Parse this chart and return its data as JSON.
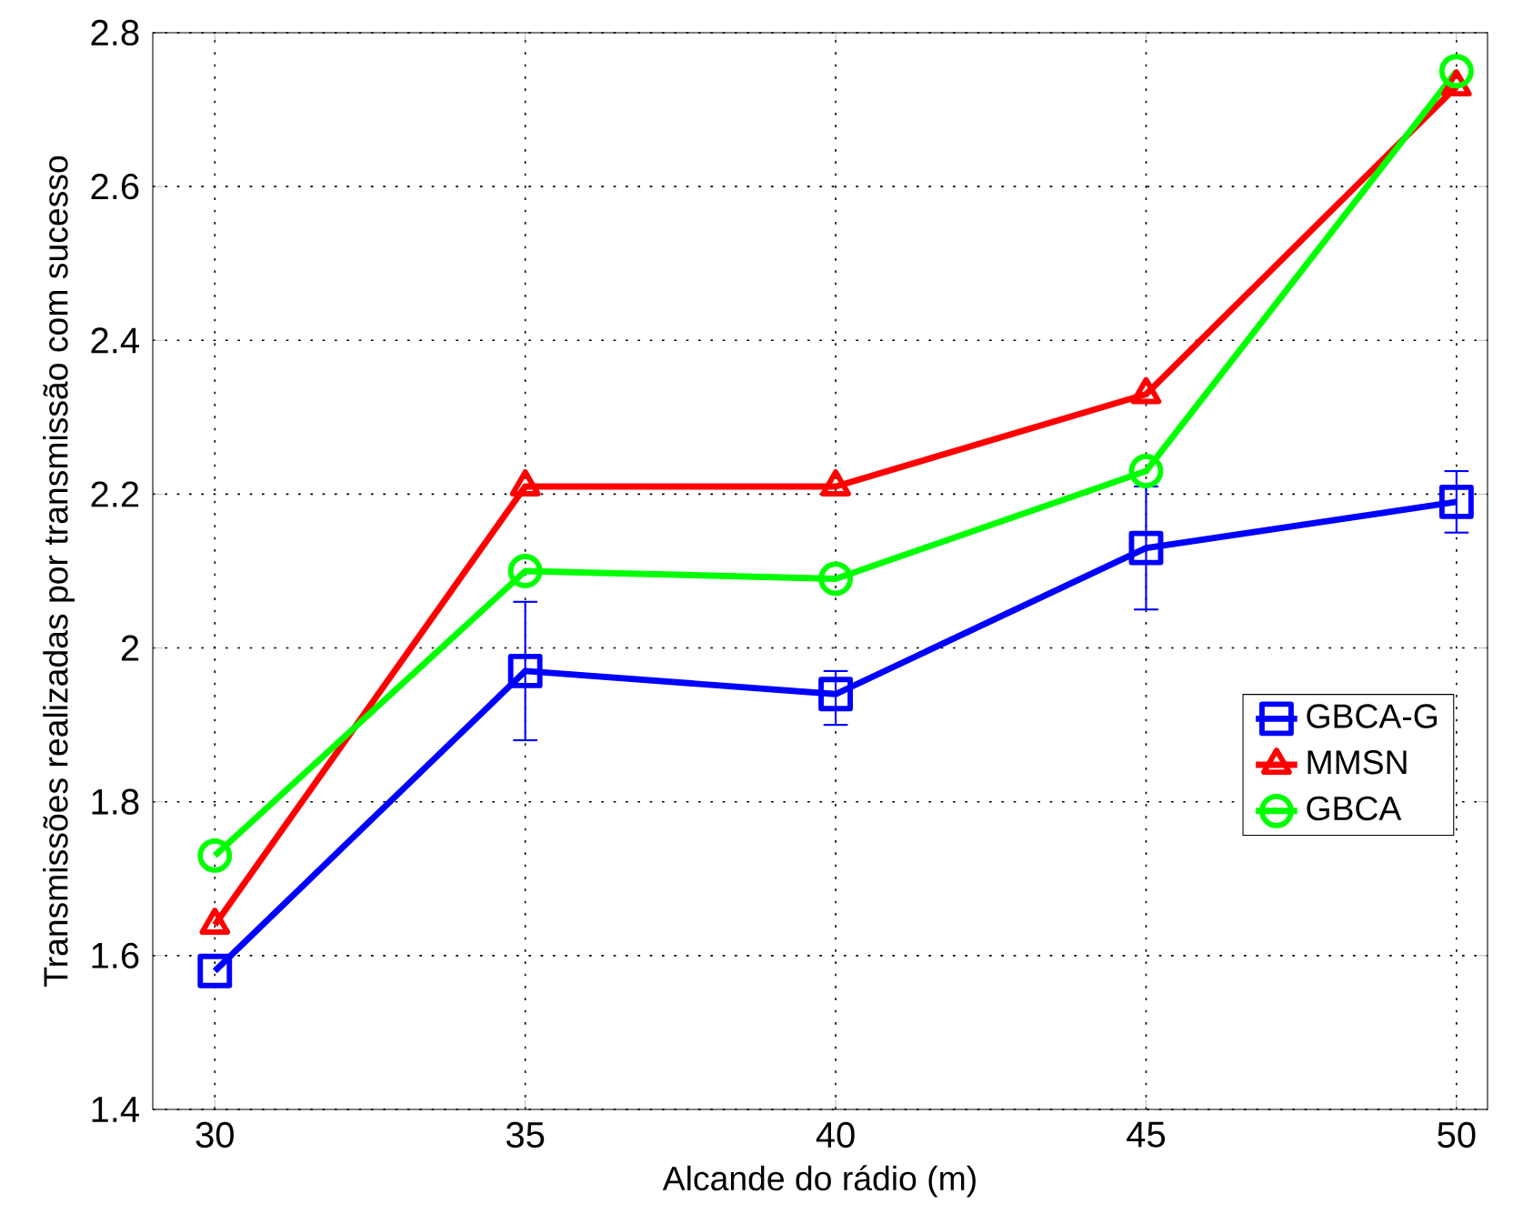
{
  "chart_data": {
    "type": "line",
    "xlabel": "Alcande do rádio (m)",
    "ylabel": "Transmissões realizadas por transmissão com sucesso",
    "x": [
      30,
      35,
      40,
      45,
      50
    ],
    "series": [
      {
        "name": "GBCA-G",
        "color": "#0000ff",
        "marker": "square",
        "values": [
          1.58,
          1.97,
          1.94,
          2.13,
          2.19
        ],
        "errors": [
          null,
          [
            1.88,
            2.06
          ],
          [
            1.9,
            1.97
          ],
          [
            2.05,
            2.21
          ],
          [
            2.15,
            2.23
          ]
        ]
      },
      {
        "name": "MMSN",
        "color": "#ff0000",
        "marker": "triangle",
        "values": [
          1.64,
          2.21,
          2.21,
          2.33,
          2.73
        ]
      },
      {
        "name": "GBCA",
        "color": "#00ff00",
        "marker": "circle",
        "values": [
          1.73,
          2.1,
          2.09,
          2.23,
          2.75
        ]
      }
    ],
    "xlim": [
      29,
      50.5
    ],
    "ylim": [
      1.4,
      2.8
    ],
    "xticks": [
      30,
      35,
      40,
      45,
      50
    ],
    "yticks": [
      1.4,
      1.6,
      1.8,
      2,
      2.2,
      2.4,
      2.6,
      2.8
    ],
    "grid": true,
    "legend": "right",
    "line_style": "solid"
  }
}
